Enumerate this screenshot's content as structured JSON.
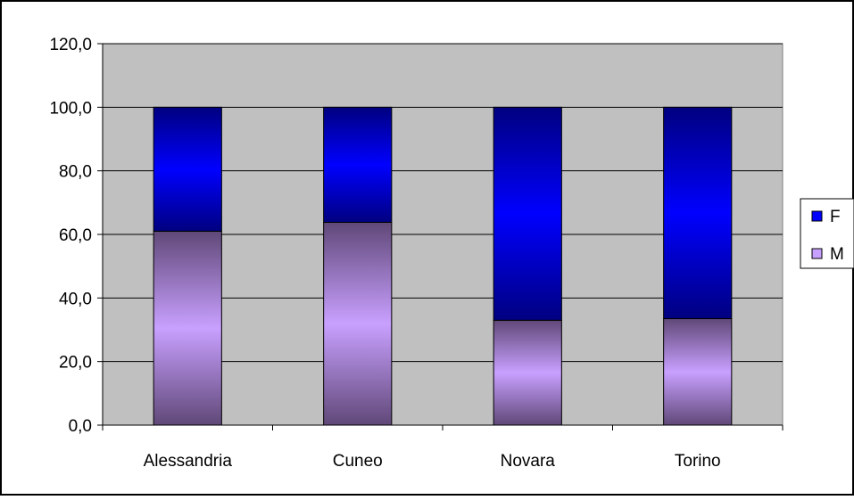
{
  "chart_data": {
    "type": "bar",
    "stacked": true,
    "title": "",
    "xlabel": "",
    "ylabel": "",
    "categories": [
      "Alessandria",
      "Cuneo",
      "Novara",
      "Torino"
    ],
    "series": [
      {
        "name": "M",
        "values": [
          61.0,
          63.8,
          33.0,
          33.5
        ],
        "color": "#c8a0ff"
      },
      {
        "name": "F",
        "values": [
          39.0,
          36.2,
          67.0,
          66.5
        ],
        "color": "#0000ff"
      }
    ],
    "ylim": [
      0,
      120
    ],
    "y_ticks": [
      "0,0",
      "20,0",
      "40,0",
      "60,0",
      "80,0",
      "100,0",
      "120,0"
    ],
    "grid": true,
    "legend": {
      "position": "right",
      "entries": [
        "F",
        "M"
      ]
    },
    "colors": {
      "plot_background": "#c0c0c0",
      "gridline": "#000000",
      "f_dark": "#000080",
      "f_light": "#0000ff",
      "m_dark": "#604878",
      "m_light": "#c8a0ff"
    }
  }
}
